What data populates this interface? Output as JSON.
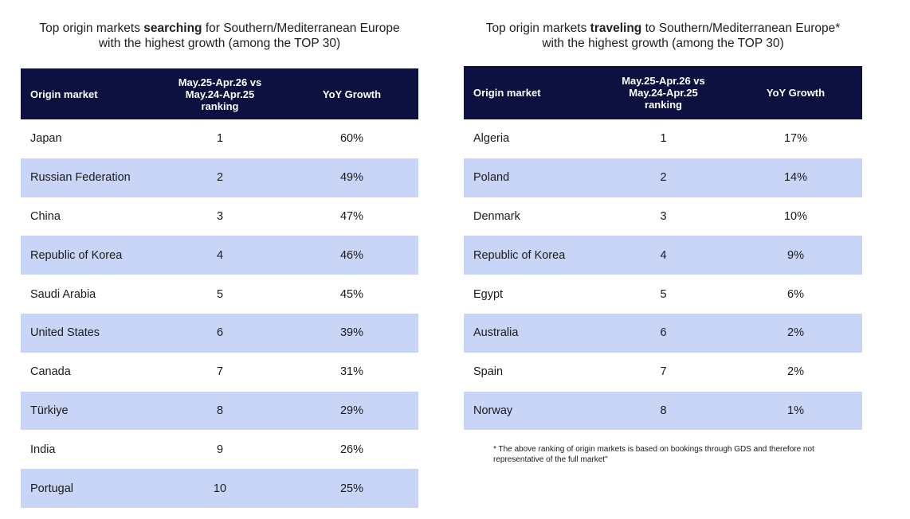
{
  "left": {
    "title_pre": "Top origin markets ",
    "title_bold": "searching",
    "title_post": " for Southern/Mediterranean Europe",
    "title_line2": "with the highest growth (among the TOP 30)",
    "header": {
      "col1": "Origin market",
      "col2_lines": [
        "May.25-Apr.26 vs",
        "May.24-Apr.25",
        "ranking"
      ],
      "col3": "YoY Growth"
    },
    "rows": [
      {
        "market": "Japan",
        "rank": "1",
        "growth": "60%"
      },
      {
        "market": "Russian Federation",
        "rank": "2",
        "growth": "49%"
      },
      {
        "market": "China",
        "rank": "3",
        "growth": "47%"
      },
      {
        "market": "Republic of Korea",
        "rank": "4",
        "growth": "46%"
      },
      {
        "market": "Saudi Arabia",
        "rank": "5",
        "growth": "45%"
      },
      {
        "market": "United States",
        "rank": "6",
        "growth": "39%"
      },
      {
        "market": "Canada",
        "rank": "7",
        "growth": "31%"
      },
      {
        "market": "Türkiye",
        "rank": "8",
        "growth": "29%"
      },
      {
        "market": "India",
        "rank": "9",
        "growth": "26%"
      },
      {
        "market": "Portugal",
        "rank": "10",
        "growth": "25%"
      }
    ]
  },
  "right": {
    "title_pre": "Top origin markets ",
    "title_bold": "traveling",
    "title_post": " to Southern/Mediterranean Europe*",
    "title_line2": "with the highest growth (among the TOP 30)",
    "header": {
      "col1": "Origin market",
      "col2_lines": [
        "May.25-Apr.26 vs",
        "May.24-Apr.25",
        "ranking"
      ],
      "col3": "YoY Growth"
    },
    "rows": [
      {
        "market": "Algeria",
        "rank": "1",
        "growth": "17%"
      },
      {
        "market": "Poland",
        "rank": "2",
        "growth": "14%"
      },
      {
        "market": "Denmark",
        "rank": "3",
        "growth": "10%"
      },
      {
        "market": "Republic of Korea",
        "rank": "4",
        "growth": "9%"
      },
      {
        "market": "Egypt",
        "rank": "5",
        "growth": "6%"
      },
      {
        "market": "Australia",
        "rank": "6",
        "growth": "2%"
      },
      {
        "market": "Spain",
        "rank": "7",
        "growth": "2%"
      },
      {
        "market": "Norway",
        "rank": "8",
        "growth": "1%"
      }
    ]
  },
  "footnote": {
    "line1": "* The above ranking of origin markets is based on bookings through GDS and therefore not",
    "line2": "representative of the full market\""
  },
  "colors": {
    "header_bg": "#0c1140",
    "alt_row_bg": "#c9d5f7"
  }
}
